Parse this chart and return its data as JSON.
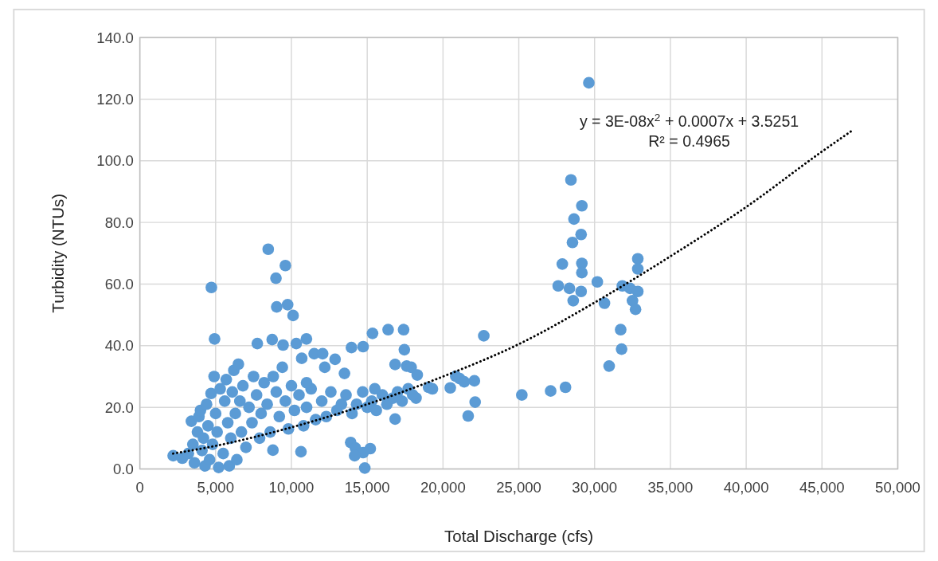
{
  "chart_data": {
    "type": "scatter",
    "xlabel": "Total Discharge (cfs)",
    "ylabel": "Turbidity (NTUs)",
    "xlim": [
      0,
      50000
    ],
    "ylim": [
      0,
      140
    ],
    "xticks": [
      0,
      {
        "value": 5000,
        "label": "5,000"
      },
      {
        "value": 10000,
        "label": "10,000"
      },
      {
        "value": 15000,
        "label": "15,000"
      },
      {
        "value": 20000,
        "label": "20,000"
      },
      {
        "value": 25000,
        "label": "25,000"
      },
      {
        "value": 30000,
        "label": "30,000"
      },
      {
        "value": 35000,
        "label": "35,000"
      },
      {
        "value": 40000,
        "label": "40,000"
      },
      {
        "value": 45000,
        "label": "45,000"
      },
      {
        "value": 50000,
        "label": "50,000"
      }
    ],
    "yticks": [
      {
        "value": 0,
        "label": "0.0"
      },
      {
        "value": 20,
        "label": "20.0"
      },
      {
        "value": 40,
        "label": "40.0"
      },
      {
        "value": 60,
        "label": "60.0"
      },
      {
        "value": 80,
        "label": "80.0"
      },
      {
        "value": 100,
        "label": "100.0"
      },
      {
        "value": 120,
        "label": "120.0"
      },
      {
        "value": 140,
        "label": "140.0"
      }
    ],
    "grid": true,
    "annotations": [
      "y = 3E-08x$^{2}$ + 0.0007x + 3.5251",
      "R² = 0.4965"
    ],
    "series": [
      {
        "color": "#5b9bd5",
        "marker": "circle",
        "x": [
          29620,
          28440,
          28640,
          28540,
          29160,
          29110,
          29160,
          29160,
          29110,
          27870,
          27600,
          28340,
          28590,
          30180,
          30650,
          31780,
          31720,
          30960,
          32850,
          32850,
          31830,
          32340,
          32850,
          32500,
          32700,
          28080,
          27100,
          25200,
          22690,
          22070,
          21660,
          22120,
          20840,
          21100,
          21400,
          20480,
          19300,
          19050,
          18220,
          17450,
          17400,
          17600,
          16840,
          16380,
          16840,
          14730,
          15350,
          4720,
          4930,
          8470,
          9600,
          8980,
          9030,
          9750,
          10110,
          7750,
          8730,
          9450,
          10320,
          10990,
          11500,
          12060,
          12880,
          13960,
          10680,
          13910,
          14220,
          14730,
          15200,
          14840,
          14170,
          8780,
          10630,
          2200,
          2800,
          3200,
          3400,
          3500,
          3600,
          3800,
          3900,
          4000,
          4100,
          4200,
          4300,
          4400,
          4500,
          4600,
          4700,
          4800,
          4900,
          5000,
          5100,
          5200,
          5300,
          5500,
          5600,
          5700,
          5800,
          5900,
          6000,
          6100,
          6200,
          6300,
          6400,
          6500,
          6600,
          6700,
          6800,
          7000,
          7200,
          7400,
          7500,
          7700,
          7900,
          8000,
          8200,
          8400,
          8600,
          8800,
          9000,
          9200,
          9400,
          9600,
          9800,
          10000,
          10200,
          10500,
          10800,
          11000,
          11300,
          11600,
          12000,
          12300,
          12600,
          13000,
          13300,
          13600,
          14000,
          14300,
          14700,
          15000,
          15300,
          15600,
          16000,
          16300,
          16700,
          17000,
          17300,
          17700,
          18000,
          18300,
          17900,
          15500,
          13500,
          12200,
          11000
        ],
        "values": [
          125.3,
          93.8,
          81.1,
          73.5,
          85.4,
          76.1,
          66.7,
          63.7,
          57.6,
          66.5,
          59.4,
          58.6,
          54.6,
          60.7,
          53.8,
          38.9,
          45.2,
          33.4,
          68.2,
          64.9,
          59.4,
          58.6,
          57.6,
          54.6,
          51.8,
          26.5,
          25.3,
          24.0,
          43.2,
          28.6,
          17.2,
          21.7,
          30.1,
          29.3,
          28.3,
          26.3,
          26.0,
          26.5,
          23.0,
          38.7,
          45.2,
          33.4,
          33.9,
          45.2,
          16.2,
          39.7,
          44.0,
          58.9,
          42.2,
          71.3,
          66.0,
          61.9,
          52.6,
          53.3,
          49.8,
          40.7,
          42.0,
          40.2,
          40.7,
          42.2,
          37.4,
          37.4,
          35.6,
          39.4,
          35.9,
          8.6,
          6.8,
          5.3,
          6.6,
          0.3,
          4.3,
          6.1,
          5.6,
          4.3,
          3.5,
          5,
          15.5,
          8,
          2,
          12,
          17,
          19,
          6,
          10,
          1,
          21,
          14,
          3,
          24.5,
          8,
          30,
          18,
          12,
          0.5,
          26,
          5,
          22,
          29,
          15,
          1,
          10,
          25,
          32,
          18,
          3,
          34,
          22,
          12,
          27,
          7,
          20,
          15,
          30,
          24,
          10,
          18,
          28,
          21,
          12,
          30,
          25,
          17,
          33,
          22,
          13,
          27,
          19,
          24,
          14,
          20,
          26,
          16,
          22,
          17,
          25,
          19,
          21,
          24,
          18,
          21,
          25,
          20,
          22,
          19,
          24,
          21,
          23,
          25,
          22,
          26,
          24,
          30.5,
          33,
          26,
          31,
          33,
          28
        ]
      },
      {
        "type": "line",
        "color": "#000000",
        "marker": "none",
        "line_style": "dotted",
        "x": [
          2200,
          5000,
          10000,
          15000,
          20000,
          25000,
          30000,
          35000,
          40000,
          45000,
          46900
        ],
        "values": [
          5,
          7.5,
          13.5,
          21,
          30,
          40.5,
          54,
          69,
          85,
          103,
          109.5
        ]
      }
    ]
  }
}
